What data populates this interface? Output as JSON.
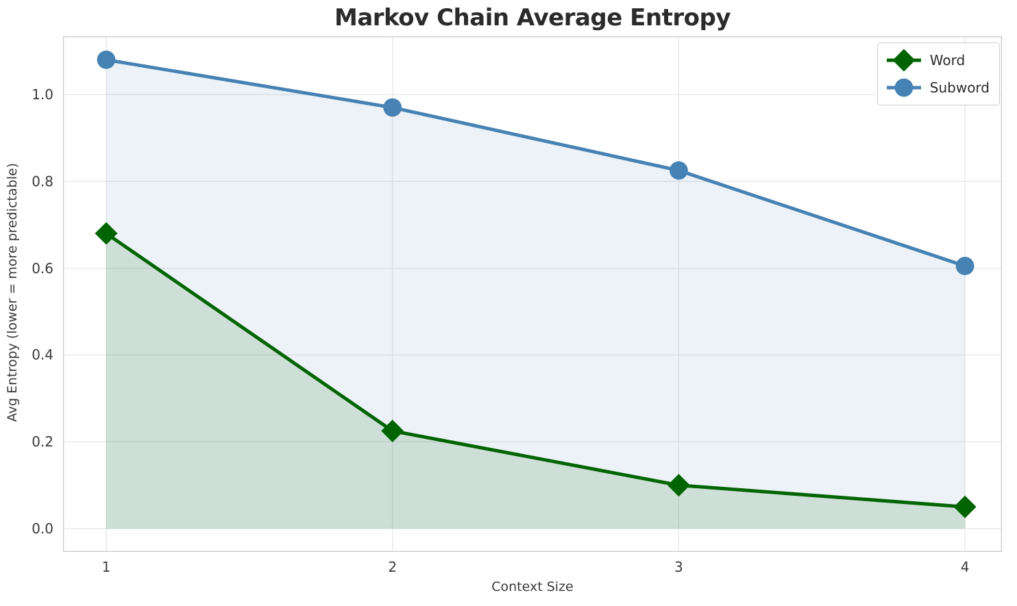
{
  "chart_data": {
    "type": "line",
    "title": "Markov Chain Average Entropy",
    "xlabel": "Context Size",
    "ylabel": "Avg Entropy (lower = more predictable)",
    "x": [
      1,
      2,
      3,
      4
    ],
    "series": [
      {
        "name": "Word",
        "values": [
          0.68,
          0.225,
          0.1,
          0.05
        ],
        "color": "#006400",
        "marker": "diamond",
        "fill_alpha": 0.13
      },
      {
        "name": "Subword",
        "values": [
          1.08,
          0.97,
          0.825,
          0.605
        ],
        "color": "#4682b4",
        "marker": "circle",
        "fill_alpha": 0.1
      }
    ],
    "x_tick_labels": [
      "1",
      "2",
      "3",
      "4"
    ],
    "y_tick_labels": [
      "0.0",
      "0.2",
      "0.4",
      "0.6",
      "0.8",
      "1.0"
    ],
    "y_tick_values": [
      0.0,
      0.2,
      0.4,
      0.6,
      0.8,
      1.0
    ],
    "xlim": [
      0.85,
      4.16
    ],
    "ylim": [
      -0.054,
      1.134
    ],
    "grid": true,
    "grid_color": "#e7e7e7",
    "spine_color": "#c9c9c9",
    "legend_position": "upper right",
    "area_fill_to_zero": true
  }
}
